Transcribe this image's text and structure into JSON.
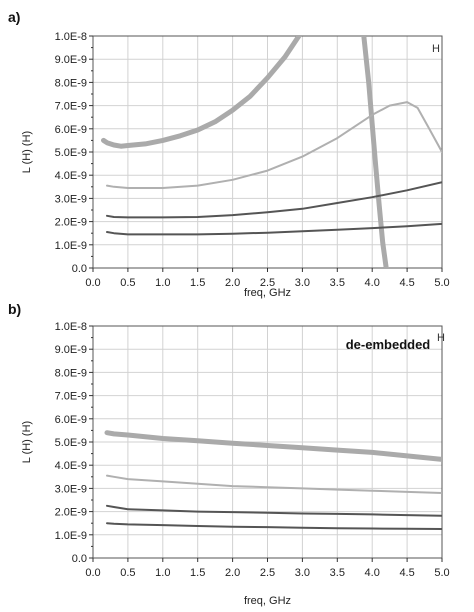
{
  "chart_data": [
    {
      "panel_label": "a)",
      "type": "line",
      "xlabel": "freq, GHz",
      "ylabel": "L (H)  (H)",
      "corner_unit": "H",
      "annotation": "",
      "xlim": [
        0.0,
        5.0
      ],
      "ylim": [
        0.0,
        1e-08
      ],
      "x_ticks": [
        "0.0",
        "0.5",
        "1.0",
        "1.5",
        "2.0",
        "2.5",
        "3.0",
        "3.5",
        "4.0",
        "4.5",
        "5.0"
      ],
      "y_ticks": [
        "0.0",
        "1.0E-9",
        "2.0E-9",
        "3.0E-9",
        "4.0E-9",
        "5.0E-9",
        "6.0E-9",
        "7.0E-9",
        "8.0E-9",
        "9.0E-9",
        "1.0E-8"
      ],
      "grid": true,
      "series": [
        {
          "color": "#aaaaaa",
          "width": 5,
          "x": [
            0.15,
            0.2,
            0.3,
            0.4,
            0.5,
            0.75,
            1.0,
            1.25,
            1.5,
            1.75,
            2.0,
            2.25,
            2.5,
            2.75,
            2.95
          ],
          "y": [
            5.5e-09,
            5.4e-09,
            5.3e-09,
            5.25e-09,
            5.28e-09,
            5.35e-09,
            5.5e-09,
            5.7e-09,
            5.95e-09,
            6.3e-09,
            6.8e-09,
            7.4e-09,
            8.2e-09,
            9.1e-09,
            1e-08
          ]
        },
        {
          "color": "#aaaaaa",
          "width": 5,
          "x": [
            3.88,
            3.95,
            4.0,
            4.05,
            4.1,
            4.15,
            4.2
          ],
          "y": [
            1e-08,
            8e-09,
            6.2e-09,
            4.4e-09,
            2.7e-09,
            1.1e-09,
            0.0
          ]
        },
        {
          "color": "#b0b0b0",
          "width": 2,
          "x": [
            0.2,
            0.3,
            0.5,
            1.0,
            1.5,
            2.0,
            2.5,
            3.0,
            3.5,
            4.0,
            4.25,
            4.5,
            4.65,
            4.8,
            5.0
          ],
          "y": [
            3.55e-09,
            3.5e-09,
            3.45e-09,
            3.45e-09,
            3.55e-09,
            3.8e-09,
            4.2e-09,
            4.8e-09,
            5.6e-09,
            6.6e-09,
            7e-09,
            7.15e-09,
            6.9e-09,
            6.1e-09,
            5e-09
          ]
        },
        {
          "color": "#555555",
          "width": 2,
          "x": [
            0.2,
            0.3,
            0.5,
            1.0,
            1.5,
            2.0,
            2.5,
            3.0,
            3.5,
            4.0,
            4.5,
            5.0
          ],
          "y": [
            2.25e-09,
            2.2e-09,
            2.18e-09,
            2.18e-09,
            2.2e-09,
            2.28e-09,
            2.4e-09,
            2.55e-09,
            2.8e-09,
            3.05e-09,
            3.35e-09,
            3.7e-09
          ]
        },
        {
          "color": "#555555",
          "width": 2,
          "x": [
            0.2,
            0.3,
            0.5,
            1.0,
            1.5,
            2.0,
            2.5,
            3.0,
            3.5,
            4.0,
            4.5,
            5.0
          ],
          "y": [
            1.55e-09,
            1.5e-09,
            1.45e-09,
            1.45e-09,
            1.45e-09,
            1.48e-09,
            1.52e-09,
            1.58e-09,
            1.65e-09,
            1.72e-09,
            1.8e-09,
            1.9e-09
          ]
        }
      ]
    },
    {
      "panel_label": "b)",
      "type": "line",
      "xlabel": "freq, GHz",
      "ylabel": "L (H)  (H)",
      "corner_unit": "H",
      "annotation": "de-embedded",
      "xlim": [
        0.0,
        5.0
      ],
      "ylim": [
        0.0,
        1e-08
      ],
      "x_ticks": [
        "0.0",
        "0.5",
        "1.0",
        "1.5",
        "2.0",
        "2.5",
        "3.0",
        "3.5",
        "4.0",
        "4.5",
        "5.0"
      ],
      "y_ticks": [
        "0.0",
        "1.0E-9",
        "2.0E-9",
        "3.0E-9",
        "4.0E-9",
        "5.0E-9",
        "6.0E-9",
        "7.0E-9",
        "8.0E-9",
        "9.0E-9",
        "1.0E-8"
      ],
      "grid": true,
      "series": [
        {
          "color": "#aaaaaa",
          "width": 5,
          "x": [
            0.2,
            0.3,
            0.5,
            1.0,
            1.5,
            2.0,
            2.5,
            3.0,
            3.5,
            4.0,
            4.5,
            5.0
          ],
          "y": [
            5.4e-09,
            5.35e-09,
            5.3e-09,
            5.15e-09,
            5.05e-09,
            4.95e-09,
            4.85e-09,
            4.75e-09,
            4.65e-09,
            4.55e-09,
            4.4e-09,
            4.25e-09
          ]
        },
        {
          "color": "#b0b0b0",
          "width": 2,
          "x": [
            0.2,
            0.3,
            0.5,
            1.0,
            1.5,
            2.0,
            2.5,
            3.0,
            3.5,
            4.0,
            4.5,
            5.0
          ],
          "y": [
            3.55e-09,
            3.5e-09,
            3.4e-09,
            3.3e-09,
            3.2e-09,
            3.1e-09,
            3.05e-09,
            3e-09,
            2.95e-09,
            2.9e-09,
            2.85e-09,
            2.8e-09
          ]
        },
        {
          "color": "#555555",
          "width": 2,
          "x": [
            0.2,
            0.3,
            0.5,
            1.0,
            1.5,
            2.0,
            2.5,
            3.0,
            3.5,
            4.0,
            4.5,
            5.0
          ],
          "y": [
            2.25e-09,
            2.2e-09,
            2.1e-09,
            2.05e-09,
            2e-09,
            1.98e-09,
            1.95e-09,
            1.92e-09,
            1.9e-09,
            1.88e-09,
            1.85e-09,
            1.82e-09
          ]
        },
        {
          "color": "#555555",
          "width": 2,
          "x": [
            0.2,
            0.3,
            0.5,
            1.0,
            1.5,
            2.0,
            2.5,
            3.0,
            3.5,
            4.0,
            4.5,
            5.0
          ],
          "y": [
            1.5e-09,
            1.48e-09,
            1.45e-09,
            1.42e-09,
            1.38e-09,
            1.35e-09,
            1.33e-09,
            1.3e-09,
            1.28e-09,
            1.27e-09,
            1.26e-09,
            1.25e-09
          ]
        }
      ]
    }
  ]
}
